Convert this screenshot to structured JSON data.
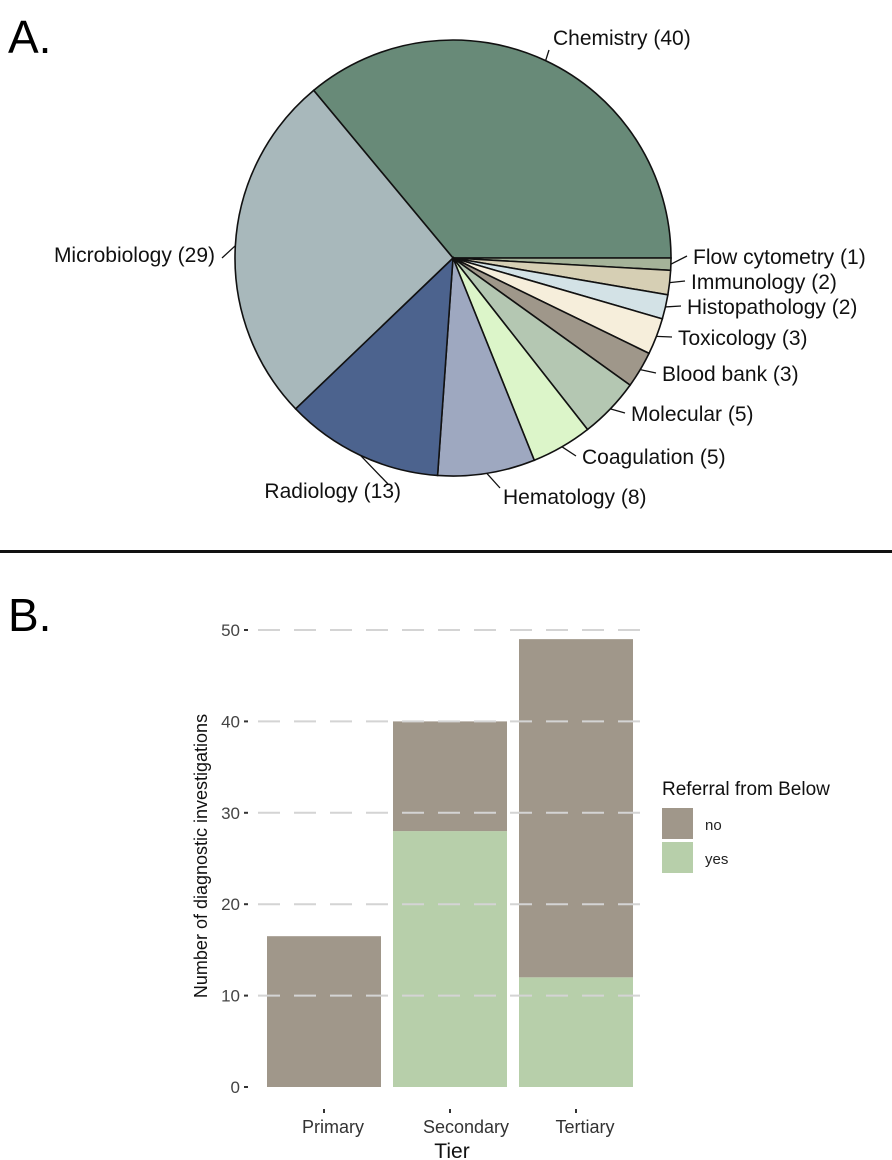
{
  "panel_a": {
    "letter": "A."
  },
  "panel_b": {
    "letter": "B."
  },
  "chart_data": [
    {
      "type": "pie",
      "slices": [
        {
          "label": "Chemistry (40)",
          "value": 40,
          "color": "#688a78"
        },
        {
          "label": "Flow cytometry (1)",
          "value": 1,
          "color": "#a5b399"
        },
        {
          "label": "Immunology (2)",
          "value": 2,
          "color": "#d6cfb4"
        },
        {
          "label": "Histopathology (2)",
          "value": 2,
          "color": "#d3e2e6"
        },
        {
          "label": "Toxicology (3)",
          "value": 3,
          "color": "#f6eedb"
        },
        {
          "label": "Blood bank (3)",
          "value": 3,
          "color": "#9f978a"
        },
        {
          "label": "Molecular (5)",
          "value": 5,
          "color": "#b4c7b2"
        },
        {
          "label": "Coagulation (5)",
          "value": 5,
          "color": "#dcf5c9"
        },
        {
          "label": "Hematology (8)",
          "value": 8,
          "color": "#9ea8c0"
        },
        {
          "label": "Radiology (13)",
          "value": 13,
          "color": "#4c638e"
        },
        {
          "label": "Microbiology (29)",
          "value": 29,
          "color": "#a8b8bb"
        }
      ]
    },
    {
      "type": "bar",
      "stacked": true,
      "categories": [
        "Primary",
        "Secondary",
        "Tertiary"
      ],
      "series": [
        {
          "name": "yes",
          "values": [
            0,
            28,
            12
          ],
          "color": "#b7cfaa"
        },
        {
          "name": "no",
          "values": [
            16.5,
            12,
            37
          ],
          "color": "#a0978a"
        }
      ],
      "xlabel": "Tier",
      "ylabel": "Number of diagnostic investigations",
      "ylim": [
        0,
        50
      ],
      "yticks": [
        0,
        10,
        20,
        30,
        40,
        50
      ],
      "grid": "dashed horizontal",
      "legend": {
        "title": "Referral from Below",
        "placement": "right",
        "entries": [
          {
            "label": "no",
            "color": "#a0978a"
          },
          {
            "label": "yes",
            "color": "#b7cfaa"
          }
        ]
      }
    }
  ]
}
